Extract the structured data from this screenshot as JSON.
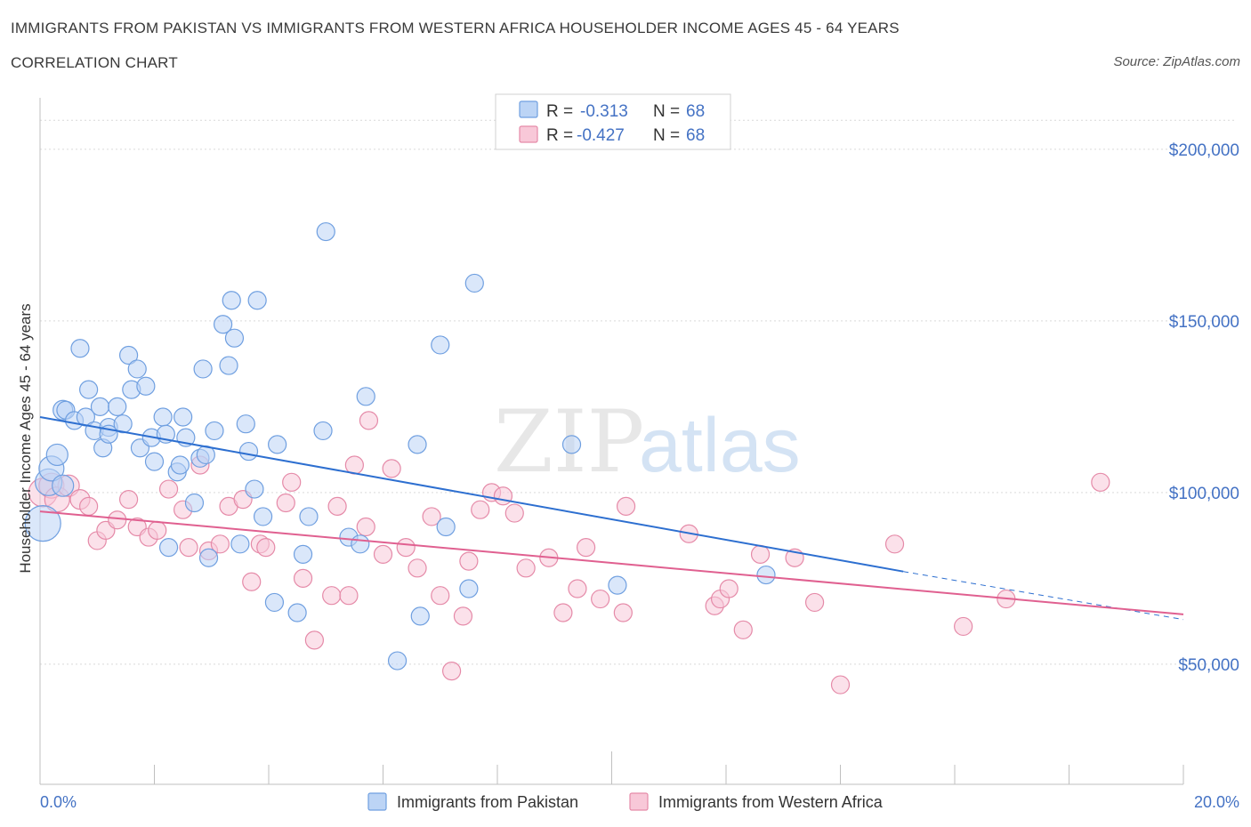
{
  "header": {
    "title": "IMMIGRANTS FROM PAKISTAN VS IMMIGRANTS FROM WESTERN AFRICA HOUSEHOLDER INCOME AGES 45 - 64 YEARS",
    "subtitle": "CORRELATION CHART",
    "source": "Source: ZipAtlas.com"
  },
  "colors": {
    "pakistan_fill": "#bcd4f5",
    "pakistan_stroke": "#6f9fe0",
    "pakistan_line": "#2d6fd0",
    "wafrica_fill": "#f8c8d8",
    "wafrica_stroke": "#e58aa8",
    "wafrica_line": "#e06090",
    "grid": "#d9d9d9",
    "axis_text": "#4472c4"
  },
  "legend": {
    "r_label": "R =",
    "n_label": "N =",
    "items": [
      {
        "r": "-0.313",
        "n": "68"
      },
      {
        "r": "-0.427",
        "n": "68"
      }
    ]
  },
  "watermark": {
    "zip": "ZIP",
    "atlas": "atlas"
  },
  "chart_data": {
    "type": "scatter",
    "title": "IMMIGRANTS FROM PAKISTAN VS IMMIGRANTS FROM WESTERN AFRICA HOUSEHOLDER INCOME AGES 45 - 64 YEARS",
    "xlabel": "",
    "ylabel": "Householder Income Ages 45 - 64 years",
    "x_unit": "percent",
    "xlim": [
      0,
      20
    ],
    "ylim": [
      15000,
      215000
    ],
    "x_tick_labels": [
      "0.0%",
      "20.0%"
    ],
    "y_ticks": [
      50000,
      100000,
      150000,
      200000
    ],
    "y_tick_labels": [
      "$50,000",
      "$100,000",
      "$150,000",
      "$200,000"
    ],
    "grid": true,
    "legend_position": "top-center",
    "series": [
      {
        "name": "Immigrants from Pakistan",
        "r": -0.313,
        "n": 68,
        "trend": {
          "x0": 0,
          "y0": 122000,
          "x1": 15.1,
          "y1": 77000,
          "dashed_to_x": 20,
          "dashed_to_y": 63000
        },
        "points": [
          [
            0.05,
            91000,
            2.0
          ],
          [
            0.15,
            103000,
            1.5
          ],
          [
            0.2,
            107000,
            1.4
          ],
          [
            0.3,
            111000,
            1.2
          ],
          [
            0.4,
            102000,
            1.2
          ],
          [
            0.4,
            124000,
            1.1
          ],
          [
            0.45,
            124000,
            1.0
          ],
          [
            0.6,
            121000,
            1.0
          ],
          [
            0.7,
            142000,
            1.0
          ],
          [
            0.8,
            122000,
            1.0
          ],
          [
            0.85,
            130000,
            1.0
          ],
          [
            0.95,
            118000,
            1.0
          ],
          [
            1.05,
            125000,
            1.0
          ],
          [
            1.1,
            113000,
            1.0
          ],
          [
            1.2,
            119000,
            1.0
          ],
          [
            1.2,
            117000,
            1.0
          ],
          [
            1.35,
            125000,
            1.0
          ],
          [
            1.45,
            120000,
            1.0
          ],
          [
            1.55,
            140000,
            1.0
          ],
          [
            1.6,
            130000,
            1.0
          ],
          [
            1.7,
            136000,
            1.0
          ],
          [
            1.75,
            113000,
            1.0
          ],
          [
            1.85,
            131000,
            1.0
          ],
          [
            1.95,
            116000,
            1.0
          ],
          [
            2.0,
            109000,
            1.0
          ],
          [
            2.15,
            122000,
            1.0
          ],
          [
            2.2,
            117000,
            1.0
          ],
          [
            2.25,
            84000,
            1.0
          ],
          [
            2.4,
            106000,
            1.0
          ],
          [
            2.45,
            108000,
            1.0
          ],
          [
            2.5,
            122000,
            1.0
          ],
          [
            2.55,
            116000,
            1.0
          ],
          [
            2.7,
            97000,
            1.0
          ],
          [
            2.8,
            110000,
            1.0
          ],
          [
            2.85,
            136000,
            1.0
          ],
          [
            2.9,
            111000,
            1.0
          ],
          [
            2.95,
            81000,
            1.0
          ],
          [
            3.05,
            118000,
            1.0
          ],
          [
            3.2,
            149000,
            1.0
          ],
          [
            3.3,
            137000,
            1.0
          ],
          [
            3.35,
            156000,
            1.0
          ],
          [
            3.4,
            145000,
            1.0
          ],
          [
            3.5,
            85000,
            1.0
          ],
          [
            3.6,
            120000,
            1.0
          ],
          [
            3.65,
            112000,
            1.0
          ],
          [
            3.75,
            101000,
            1.0
          ],
          [
            3.8,
            156000,
            1.0
          ],
          [
            3.9,
            93000,
            1.0
          ],
          [
            4.1,
            68000,
            1.0
          ],
          [
            4.15,
            114000,
            1.0
          ],
          [
            4.5,
            65000,
            1.0
          ],
          [
            4.6,
            82000,
            1.0
          ],
          [
            4.7,
            93000,
            1.0
          ],
          [
            4.95,
            118000,
            1.0
          ],
          [
            5.0,
            176000,
            1.0
          ],
          [
            5.4,
            87000,
            1.0
          ],
          [
            5.6,
            85000,
            1.0
          ],
          [
            5.7,
            128000,
            1.0
          ],
          [
            6.25,
            51000,
            1.0
          ],
          [
            6.6,
            114000,
            1.0
          ],
          [
            6.65,
            64000,
            1.0
          ],
          [
            7.0,
            143000,
            1.0
          ],
          [
            7.1,
            90000,
            1.0
          ],
          [
            7.5,
            72000,
            1.0
          ],
          [
            7.6,
            161000,
            1.0
          ],
          [
            9.3,
            114000,
            1.0
          ],
          [
            10.1,
            73000,
            1.0
          ],
          [
            12.7,
            76000,
            1.0
          ]
        ]
      },
      {
        "name": "Immigrants from Western Africa",
        "r": -0.427,
        "n": 68,
        "trend": {
          "x0": 0,
          "y0": 94500,
          "x1": 20,
          "y1": 64500
        },
        "points": [
          [
            0.05,
            100000,
            1.6
          ],
          [
            0.2,
            102000,
            1.4
          ],
          [
            0.3,
            98000,
            1.4
          ],
          [
            0.5,
            102000,
            1.2
          ],
          [
            0.7,
            98000,
            1.1
          ],
          [
            0.85,
            96000,
            1.0
          ],
          [
            1.0,
            86000,
            1.0
          ],
          [
            1.15,
            89000,
            1.0
          ],
          [
            1.35,
            92000,
            1.0
          ],
          [
            1.55,
            98000,
            1.0
          ],
          [
            1.7,
            90000,
            1.0
          ],
          [
            1.9,
            87000,
            1.0
          ],
          [
            2.05,
            89000,
            1.0
          ],
          [
            2.25,
            101000,
            1.0
          ],
          [
            2.5,
            95000,
            1.0
          ],
          [
            2.6,
            84000,
            1.0
          ],
          [
            2.8,
            108000,
            1.0
          ],
          [
            2.95,
            83000,
            1.0
          ],
          [
            3.15,
            85000,
            1.0
          ],
          [
            3.3,
            96000,
            1.0
          ],
          [
            3.55,
            98000,
            1.0
          ],
          [
            3.7,
            74000,
            1.0
          ],
          [
            3.85,
            85000,
            1.0
          ],
          [
            3.95,
            84000,
            1.0
          ],
          [
            4.3,
            97000,
            1.0
          ],
          [
            4.4,
            103000,
            1.0
          ],
          [
            4.6,
            75000,
            1.0
          ],
          [
            4.8,
            57000,
            1.0
          ],
          [
            5.1,
            70000,
            1.0
          ],
          [
            5.2,
            96000,
            1.0
          ],
          [
            5.4,
            70000,
            1.0
          ],
          [
            5.5,
            108000,
            1.0
          ],
          [
            5.7,
            90000,
            1.0
          ],
          [
            5.75,
            121000,
            1.0
          ],
          [
            6.0,
            82000,
            1.0
          ],
          [
            6.15,
            107000,
            1.0
          ],
          [
            6.4,
            84000,
            1.0
          ],
          [
            6.6,
            78000,
            1.0
          ],
          [
            6.85,
            93000,
            1.0
          ],
          [
            7.0,
            70000,
            1.0
          ],
          [
            7.2,
            48000,
            1.0
          ],
          [
            7.4,
            64000,
            1.0
          ],
          [
            7.5,
            80000,
            1.0
          ],
          [
            7.7,
            95000,
            1.0
          ],
          [
            7.9,
            100000,
            1.0
          ],
          [
            8.1,
            99000,
            1.0
          ],
          [
            8.3,
            94000,
            1.0
          ],
          [
            8.5,
            78000,
            1.0
          ],
          [
            8.9,
            81000,
            1.0
          ],
          [
            9.15,
            65000,
            1.0
          ],
          [
            9.4,
            72000,
            1.0
          ],
          [
            9.55,
            84000,
            1.0
          ],
          [
            9.8,
            69000,
            1.0
          ],
          [
            10.25,
            96000,
            1.0
          ],
          [
            10.2,
            65000,
            1.0
          ],
          [
            11.35,
            88000,
            1.0
          ],
          [
            11.8,
            67000,
            1.0
          ],
          [
            11.9,
            69000,
            1.0
          ],
          [
            12.05,
            72000,
            1.0
          ],
          [
            12.3,
            60000,
            1.0
          ],
          [
            12.6,
            82000,
            1.0
          ],
          [
            13.2,
            81000,
            1.0
          ],
          [
            13.55,
            68000,
            1.0
          ],
          [
            14.0,
            44000,
            1.0
          ],
          [
            14.95,
            85000,
            1.0
          ],
          [
            16.15,
            61000,
            1.0
          ],
          [
            16.9,
            69000,
            1.0
          ],
          [
            18.55,
            103000,
            1.0
          ]
        ]
      }
    ]
  }
}
